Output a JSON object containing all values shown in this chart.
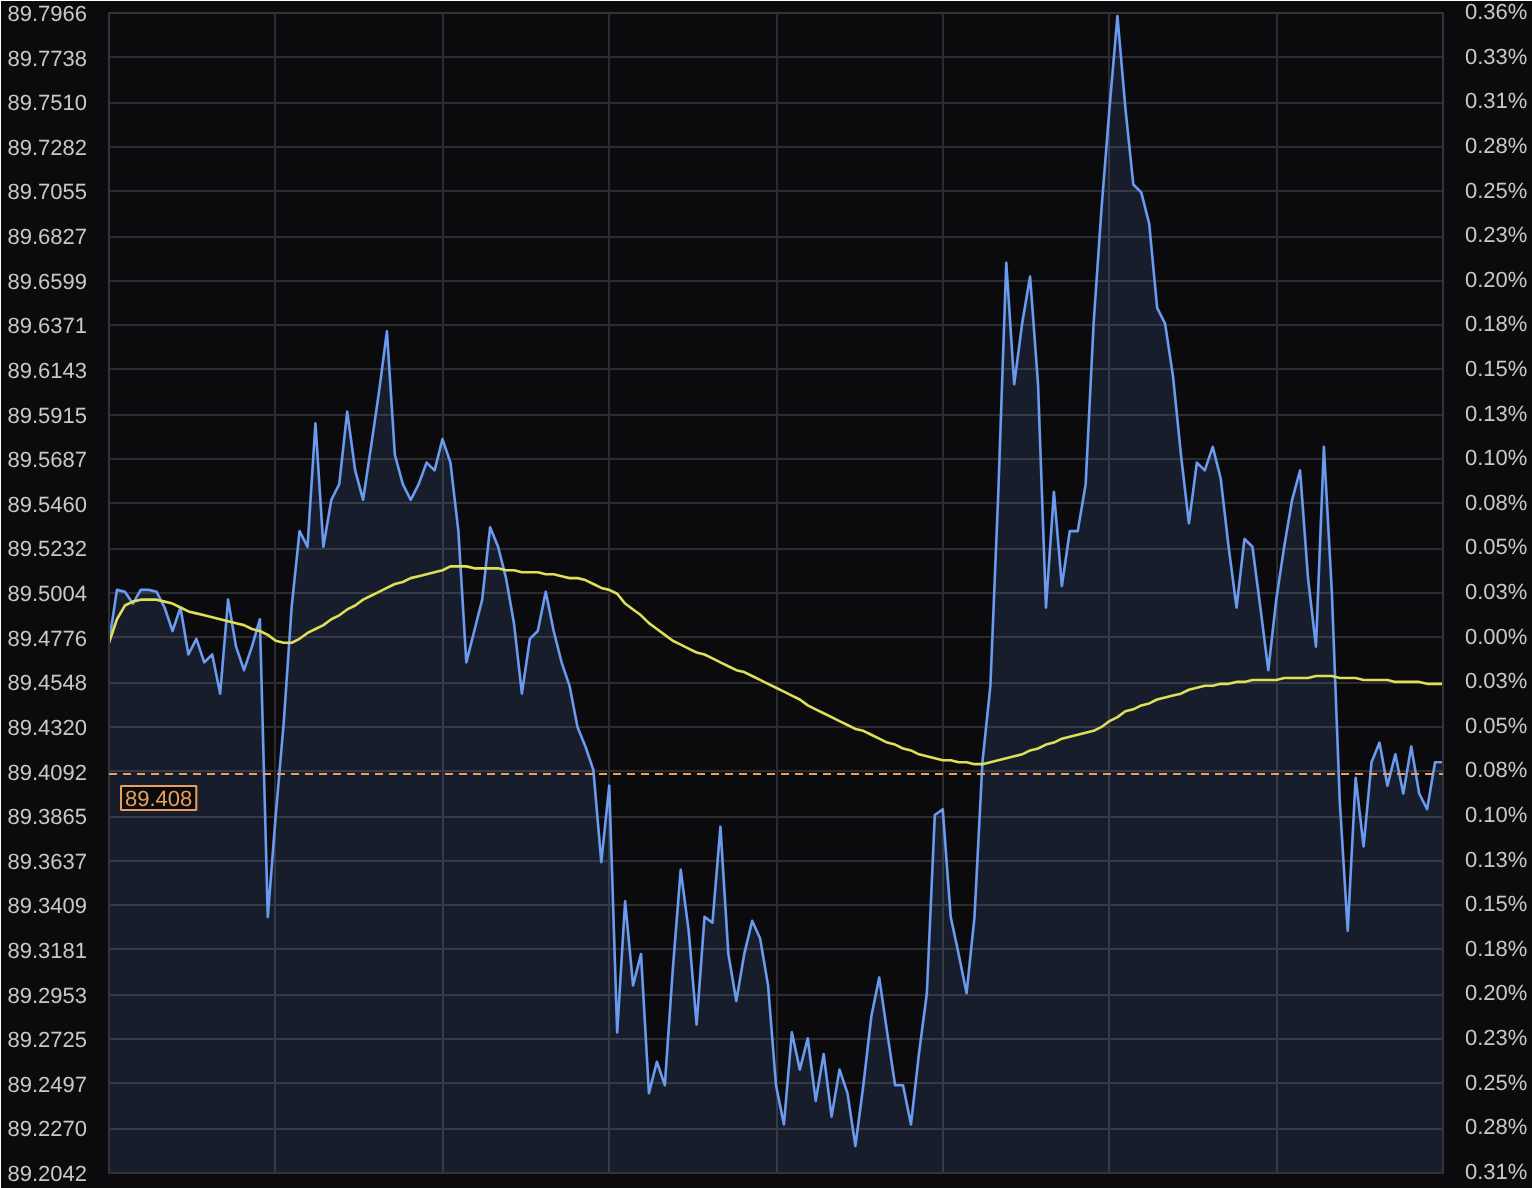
{
  "chart_data": {
    "type": "area",
    "categories": [
      null,
      null,
      null,
      null,
      null,
      null,
      null,
      null,
      null,
      null,
      null,
      null,
      null,
      null,
      null,
      null,
      null,
      null,
      null,
      null,
      null,
      null,
      null,
      null,
      null,
      null,
      null,
      null,
      null,
      null,
      null,
      null,
      null,
      null,
      null,
      null,
      null,
      null,
      null,
      null,
      null,
      null,
      null,
      null,
      null,
      null,
      null,
      null,
      null,
      null,
      null,
      null,
      null,
      null,
      null,
      null,
      null,
      null,
      null,
      null,
      null,
      null,
      null,
      null,
      null,
      null,
      null,
      null,
      null,
      null,
      null,
      null,
      null,
      null,
      null,
      null,
      null,
      null,
      null,
      null,
      null,
      null,
      null,
      null,
      null,
      null,
      null,
      null,
      null,
      null,
      null,
      null,
      null,
      null,
      null,
      null,
      null,
      null,
      null,
      null,
      null,
      null,
      null,
      null,
      null,
      null,
      null,
      null,
      null,
      null,
      null,
      null,
      null,
      null,
      null,
      null,
      null,
      null,
      null,
      null,
      null,
      null,
      null,
      null,
      null,
      null,
      null,
      null,
      null,
      null,
      null,
      null,
      null,
      null,
      null,
      null,
      null,
      null,
      null,
      null,
      null,
      null,
      null,
      null,
      null,
      null,
      null,
      null,
      null,
      null,
      null,
      null,
      null,
      null,
      null,
      null,
      null,
      null,
      null,
      null,
      null,
      null,
      null,
      null,
      null,
      null,
      null,
      null,
      null
    ],
    "ylim": [
      89.2042,
      89.7966
    ],
    "yticks": [
      89.2042,
      {
        "value": 89.227,
        "label": "89.2270"
      },
      89.2497,
      89.2725,
      89.2953,
      89.3181,
      89.3409,
      89.3637,
      89.3865,
      89.4092,
      {
        "value": 89.432,
        "label": "89.4320"
      },
      89.4548,
      89.4776,
      89.5004,
      89.5232,
      {
        "value": 89.546,
        "label": "89.5460"
      },
      89.5687,
      89.5915,
      89.6143,
      89.6371,
      89.6599,
      89.6827,
      89.7055,
      89.7282,
      {
        "value": 89.751,
        "label": "89.7510"
      },
      89.7738,
      89.7966
    ],
    "y2lim": [
      -0.3056,
      0.3565
    ],
    "y2ticks": [
      {
        "value": -0.3055,
        "label": "0.31%"
      },
      {
        "value": -0.2801,
        "label": "0.28%"
      },
      {
        "value": -0.2546,
        "label": "0.25%"
      },
      {
        "value": -0.2291,
        "label": "0.23%"
      },
      {
        "value": -0.2037,
        "label": "0.20%"
      },
      {
        "value": -0.1782,
        "label": "0.18%"
      },
      {
        "value": -0.1528,
        "label": "0.15%"
      },
      {
        "value": -0.1273,
        "label": "0.13%"
      },
      {
        "value": -0.1018,
        "label": "0.10%"
      },
      {
        "value": -0.0764,
        "label": "0.08%"
      },
      {
        "value": -0.0509,
        "label": "0.05%"
      },
      {
        "value": -0.0255,
        "label": "0.03%"
      },
      {
        "value": 0,
        "label": "0.00%"
      },
      {
        "value": 0.0255,
        "label": "0.03%"
      },
      {
        "value": 0.0509,
        "label": "0.05%"
      },
      {
        "value": 0.0764,
        "label": "0.08%"
      },
      {
        "value": 0.1018,
        "label": "0.10%"
      },
      {
        "value": 0.1273,
        "label": "0.13%"
      },
      {
        "value": 0.1528,
        "label": "0.15%"
      },
      {
        "value": 0.1782,
        "label": "0.18%"
      },
      {
        "value": 0.2037,
        "label": "0.20%"
      },
      {
        "value": 0.2291,
        "label": "0.23%"
      },
      {
        "value": 0.2546,
        "label": "0.25%"
      },
      {
        "value": 0.2801,
        "label": "0.28%"
      },
      {
        "value": 0.3055,
        "label": "0.31%"
      },
      {
        "value": 0.331,
        "label": "0.33%"
      },
      {
        "value": 0.3564,
        "label": "0.36%"
      }
    ],
    "grid": true,
    "ref_lines": [
      {
        "axis": "y",
        "value": 89.408,
        "label": "89.408",
        "color": "#e8a060",
        "line_style": "dashed"
      }
    ],
    "series": [
      {
        "color": "#6a9bf0",
        "values": [
          89.475,
          89.502,
          89.501,
          89.495,
          89.502,
          89.502,
          89.501,
          89.493,
          89.481,
          89.493,
          89.469,
          89.477,
          89.465,
          89.469,
          89.449,
          89.497,
          89.473,
          89.461,
          89.473,
          89.487,
          89.335,
          89.387,
          89.434,
          89.493,
          89.532,
          89.524,
          89.587,
          89.524,
          89.548,
          89.556,
          89.593,
          89.563,
          89.548,
          89.575,
          89.603,
          89.634,
          89.571,
          89.556,
          89.548,
          89.556,
          89.567,
          89.563,
          89.579,
          89.567,
          89.532,
          89.465,
          89.481,
          89.497,
          89.534,
          89.524,
          89.508,
          89.485,
          89.449,
          89.477,
          89.481,
          89.501,
          89.481,
          89.465,
          89.453,
          89.432,
          89.422,
          89.41,
          89.363,
          89.402,
          89.276,
          89.343,
          89.3,
          89.316,
          89.245,
          89.261,
          89.249,
          89.308,
          89.359,
          89.328,
          89.28,
          89.335,
          89.332,
          89.381,
          89.316,
          89.292,
          89.316,
          89.333,
          89.324,
          89.3,
          89.249,
          89.229,
          89.276,
          89.257,
          89.273,
          89.241,
          89.265,
          89.233,
          89.257,
          89.245,
          89.218,
          89.249,
          89.284,
          89.304,
          89.276,
          89.249,
          89.249,
          89.229,
          89.265,
          89.296,
          89.387,
          89.39,
          89.335,
          89.316,
          89.296,
          89.335,
          89.414,
          89.453,
          89.552,
          89.669,
          89.607,
          89.638,
          89.662,
          89.607,
          89.493,
          89.552,
          89.504,
          89.532,
          89.532,
          89.556,
          89.638,
          89.697,
          89.748,
          89.795,
          89.748,
          89.709,
          89.705,
          89.689,
          89.646,
          89.638,
          89.611,
          89.571,
          89.536,
          89.567,
          89.563,
          89.575,
          89.559,
          89.524,
          89.493,
          89.528,
          89.524,
          89.493,
          89.461,
          89.497,
          89.524,
          89.548,
          89.563,
          89.508,
          89.473,
          89.575,
          89.501,
          89.394,
          89.328,
          89.406,
          89.371,
          89.414,
          89.424,
          89.402,
          89.418,
          89.398,
          89.422,
          89.398,
          89.39,
          89.414,
          89.414
        ]
      },
      {
        "type": "line",
        "color": "#e0e058",
        "values": [
          89.475,
          89.487,
          89.494,
          89.496,
          89.497,
          89.497,
          89.497,
          89.496,
          89.495,
          89.493,
          89.491,
          89.49,
          89.489,
          89.488,
          89.487,
          89.486,
          89.485,
          89.484,
          89.482,
          89.481,
          89.479,
          89.476,
          89.475,
          89.475,
          89.477,
          89.48,
          89.482,
          89.484,
          89.487,
          89.489,
          89.492,
          89.494,
          89.497,
          89.499,
          89.501,
          89.503,
          89.505,
          89.506,
          89.508,
          89.509,
          89.51,
          89.511,
          89.512,
          89.514,
          89.514,
          89.514,
          89.513,
          89.513,
          89.513,
          89.513,
          89.512,
          89.512,
          89.511,
          89.511,
          89.511,
          89.51,
          89.51,
          89.509,
          89.508,
          89.508,
          89.507,
          89.505,
          89.503,
          89.502,
          89.5,
          89.495,
          89.492,
          89.489,
          89.485,
          89.482,
          89.479,
          89.476,
          89.474,
          89.472,
          89.47,
          89.469,
          89.467,
          89.465,
          89.463,
          89.461,
          89.46,
          89.458,
          89.456,
          89.454,
          89.452,
          89.45,
          89.448,
          89.446,
          89.443,
          89.441,
          89.439,
          89.437,
          89.435,
          89.433,
          89.431,
          89.43,
          89.428,
          89.426,
          89.424,
          89.423,
          89.421,
          89.42,
          89.418,
          89.417,
          89.416,
          89.415,
          89.415,
          89.414,
          89.414,
          89.413,
          89.413,
          89.414,
          89.415,
          89.416,
          89.417,
          89.418,
          89.42,
          89.421,
          89.423,
          89.424,
          89.426,
          89.427,
          89.428,
          89.429,
          89.43,
          89.432,
          89.435,
          89.437,
          89.44,
          89.441,
          89.443,
          89.444,
          89.446,
          89.447,
          89.448,
          89.449,
          89.451,
          89.452,
          89.453,
          89.453,
          89.454,
          89.454,
          89.455,
          89.455,
          89.456,
          89.456,
          89.456,
          89.456,
          89.457,
          89.457,
          89.457,
          89.457,
          89.458,
          89.458,
          89.458,
          89.457,
          89.457,
          89.457,
          89.456,
          89.456,
          89.456,
          89.456,
          89.455,
          89.455,
          89.455,
          89.455,
          89.454,
          89.454,
          89.454
        ]
      }
    ]
  }
}
